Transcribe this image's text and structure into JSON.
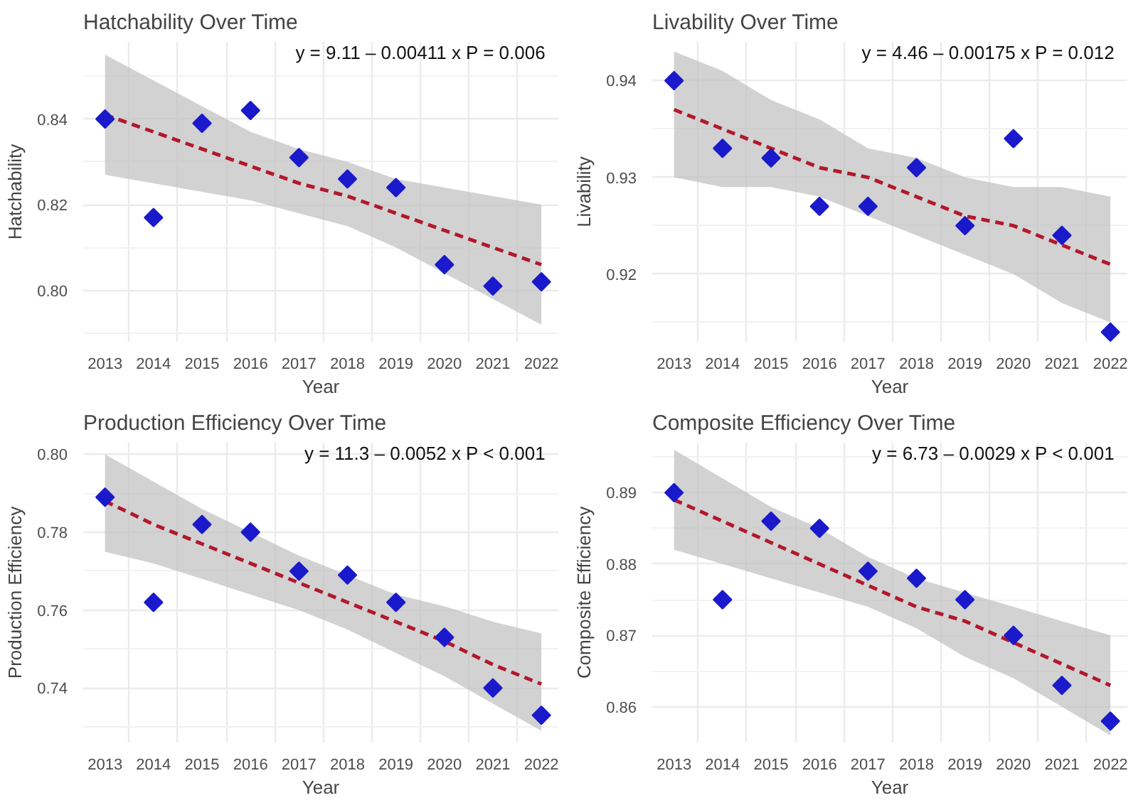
{
  "chart_data": [
    {
      "type": "scatter",
      "title": "Hatchability Over Time",
      "xlabel": "Year",
      "ylabel": "Hatchability",
      "categories": [
        "2013",
        "2014",
        "2015",
        "2016",
        "2017",
        "2018",
        "2019",
        "2020",
        "2021",
        "2022"
      ],
      "ylim": [
        0.788,
        0.858
      ],
      "yticks": [
        {
          "value": 0.8,
          "label": "0.80"
        },
        {
          "value": 0.82,
          "label": "0.82"
        },
        {
          "value": 0.84,
          "label": "0.84"
        }
      ],
      "grid": true,
      "annotations": [
        "y = 9.11 – 0.00411 x   P = 0.006"
      ],
      "series": [
        {
          "marker": "diamond",
          "color": "#1a1acc",
          "values": [
            0.84,
            0.817,
            0.839,
            0.842,
            0.831,
            0.826,
            0.824,
            0.806,
            0.801,
            0.802
          ]
        },
        {
          "type": "line",
          "color": "#b2182b",
          "line_style": "dashed",
          "values": [
            0.841,
            0.837,
            0.833,
            0.829,
            0.825,
            0.822,
            0.818,
            0.814,
            0.81,
            0.806
          ],
          "lower": [
            0.827,
            0.825,
            0.823,
            0.821,
            0.818,
            0.815,
            0.81,
            0.804,
            0.798,
            0.792
          ],
          "upper": [
            0.855,
            0.849,
            0.843,
            0.837,
            0.833,
            0.83,
            0.826,
            0.824,
            0.822,
            0.82
          ]
        }
      ]
    },
    {
      "type": "scatter",
      "title": "Livability Over Time",
      "xlabel": "Year",
      "ylabel": "Livability",
      "categories": [
        "2013",
        "2014",
        "2015",
        "2016",
        "2017",
        "2018",
        "2019",
        "2020",
        "2021",
        "2022"
      ],
      "ylim": [
        0.913,
        0.944
      ],
      "yticks": [
        {
          "value": 0.92,
          "label": "0.92"
        },
        {
          "value": 0.93,
          "label": "0.93"
        },
        {
          "value": 0.94,
          "label": "0.94"
        }
      ],
      "grid": true,
      "annotations": [
        "y = 4.46 – 0.00175 x   P = 0.012"
      ],
      "series": [
        {
          "marker": "diamond",
          "color": "#1a1acc",
          "values": [
            0.94,
            0.933,
            0.932,
            0.927,
            0.927,
            0.931,
            0.925,
            0.934,
            0.924,
            0.914
          ]
        },
        {
          "type": "line",
          "color": "#b2182b",
          "line_style": "dashed",
          "values": [
            0.937,
            0.935,
            0.933,
            0.931,
            0.93,
            0.928,
            0.926,
            0.925,
            0.923,
            0.921
          ],
          "lower": [
            0.93,
            0.929,
            0.929,
            0.928,
            0.926,
            0.924,
            0.922,
            0.92,
            0.917,
            0.915
          ],
          "upper": [
            0.943,
            0.941,
            0.938,
            0.936,
            0.933,
            0.932,
            0.93,
            0.929,
            0.929,
            0.928
          ]
        }
      ]
    },
    {
      "type": "scatter",
      "title": "Production Efficiency Over Time",
      "xlabel": "Year",
      "ylabel": "Production Efficiency",
      "categories": [
        "2013",
        "2014",
        "2015",
        "2016",
        "2017",
        "2018",
        "2019",
        "2020",
        "2021",
        "2022"
      ],
      "ylim": [
        0.726,
        0.803
      ],
      "yticks": [
        {
          "value": 0.74,
          "label": "0.74"
        },
        {
          "value": 0.76,
          "label": "0.76"
        },
        {
          "value": 0.78,
          "label": "0.78"
        },
        {
          "value": 0.8,
          "label": "0.80"
        }
      ],
      "grid": true,
      "annotations": [
        "y = 11.3 – 0.0052 x   P < 0.001"
      ],
      "series": [
        {
          "marker": "diamond",
          "color": "#1a1acc",
          "values": [
            0.789,
            0.762,
            0.782,
            0.78,
            0.77,
            0.769,
            0.762,
            0.753,
            0.74,
            0.733
          ]
        },
        {
          "type": "line",
          "color": "#b2182b",
          "line_style": "dashed",
          "values": [
            0.788,
            0.782,
            0.777,
            0.772,
            0.767,
            0.762,
            0.757,
            0.752,
            0.746,
            0.741
          ],
          "lower": [
            0.775,
            0.772,
            0.768,
            0.764,
            0.76,
            0.755,
            0.749,
            0.743,
            0.736,
            0.729
          ],
          "upper": [
            0.8,
            0.793,
            0.786,
            0.78,
            0.774,
            0.769,
            0.764,
            0.761,
            0.757,
            0.754
          ]
        }
      ]
    },
    {
      "type": "scatter",
      "title": "Composite Efficiency Over Time",
      "xlabel": "Year",
      "ylabel": "Composite Efficiency",
      "categories": [
        "2013",
        "2014",
        "2015",
        "2016",
        "2017",
        "2018",
        "2019",
        "2020",
        "2021",
        "2022"
      ],
      "ylim": [
        0.855,
        0.897
      ],
      "yticks": [
        {
          "value": 0.86,
          "label": "0.86"
        },
        {
          "value": 0.87,
          "label": "0.87"
        },
        {
          "value": 0.88,
          "label": "0.88"
        },
        {
          "value": 0.89,
          "label": "0.89"
        }
      ],
      "grid": true,
      "annotations": [
        "y = 6.73 – 0.0029 x   P < 0.001"
      ],
      "series": [
        {
          "marker": "diamond",
          "color": "#1a1acc",
          "values": [
            0.89,
            0.875,
            0.886,
            0.885,
            0.879,
            0.878,
            0.875,
            0.87,
            0.863,
            0.858
          ]
        },
        {
          "type": "line",
          "color": "#b2182b",
          "line_style": "dashed",
          "values": [
            0.889,
            0.886,
            0.883,
            0.88,
            0.877,
            0.874,
            0.872,
            0.869,
            0.866,
            0.863
          ],
          "lower": [
            0.882,
            0.88,
            0.878,
            0.876,
            0.874,
            0.871,
            0.867,
            0.864,
            0.86,
            0.856
          ],
          "upper": [
            0.896,
            0.892,
            0.888,
            0.885,
            0.881,
            0.878,
            0.876,
            0.874,
            0.872,
            0.87
          ]
        }
      ]
    }
  ]
}
